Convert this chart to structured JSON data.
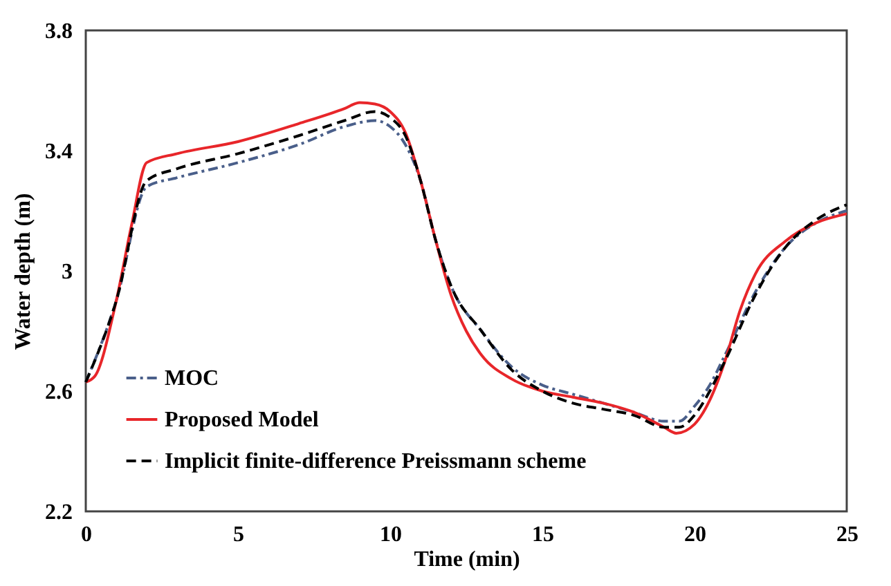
{
  "chart_data": {
    "type": "line",
    "xlabel": "Time (min)",
    "ylabel": "Water depth (m)",
    "xlim": [
      0,
      25
    ],
    "xticks": [
      0,
      5,
      10,
      15,
      20,
      25
    ],
    "ylim": [
      2.2,
      3.8
    ],
    "yticks": [
      2.2,
      2.6,
      3,
      3.4,
      3.8
    ],
    "grid": false,
    "legend": "bottom left",
    "marker": "none",
    "series": [
      {
        "name": "MOC",
        "color": "#4a5f8a",
        "line_style": "dashdot",
        "x": [
          0,
          1,
          2,
          3,
          5,
          7,
          8.5,
          9.5,
          10,
          10.5,
          11,
          11.5,
          12,
          13,
          14,
          15,
          16,
          17,
          18,
          19,
          19.5,
          20,
          20.5,
          21,
          22,
          23,
          24,
          25
        ],
        "values": [
          2.63,
          2.9,
          3.28,
          3.31,
          3.36,
          3.42,
          3.48,
          3.5,
          3.48,
          3.42,
          3.3,
          3.1,
          2.95,
          2.8,
          2.68,
          2.62,
          2.59,
          2.56,
          2.53,
          2.5,
          2.5,
          2.55,
          2.62,
          2.72,
          2.93,
          3.08,
          3.16,
          3.2
        ]
      },
      {
        "name": "Proposed Model",
        "color": "#e8262a",
        "line_style": "solid",
        "x": [
          0,
          0.3,
          1,
          1.5,
          2,
          3,
          5,
          7,
          8.5,
          9,
          9.5,
          10,
          10.5,
          11,
          11.5,
          12,
          12.5,
          13,
          14,
          15,
          16,
          17,
          18,
          19,
          19.4,
          20,
          20.5,
          21,
          21.5,
          22,
          23,
          24,
          25
        ],
        "values": [
          2.63,
          2.65,
          2.9,
          3.15,
          3.36,
          3.39,
          3.43,
          3.49,
          3.54,
          3.56,
          3.555,
          3.53,
          3.46,
          3.3,
          3.1,
          2.92,
          2.8,
          2.72,
          2.64,
          2.6,
          2.58,
          2.56,
          2.53,
          2.48,
          2.46,
          2.49,
          2.57,
          2.7,
          2.87,
          2.99,
          3.1,
          3.16,
          3.19
        ]
      },
      {
        "name": "Implicit finite-difference Preissmann scheme",
        "color": "#000000",
        "line_style": "dashed",
        "x": [
          0,
          1,
          2,
          3,
          5,
          7,
          8.5,
          9.5,
          10,
          10.5,
          11,
          11.5,
          12,
          13,
          14,
          15,
          16,
          17,
          18,
          19,
          19.5,
          20,
          20.5,
          21,
          22,
          23,
          24,
          25
        ],
        "values": [
          2.63,
          2.9,
          3.3,
          3.34,
          3.39,
          3.45,
          3.5,
          3.53,
          3.51,
          3.45,
          3.3,
          3.1,
          2.95,
          2.8,
          2.67,
          2.6,
          2.56,
          2.54,
          2.52,
          2.48,
          2.48,
          2.52,
          2.6,
          2.7,
          2.92,
          3.08,
          3.17,
          3.22
        ]
      }
    ]
  }
}
